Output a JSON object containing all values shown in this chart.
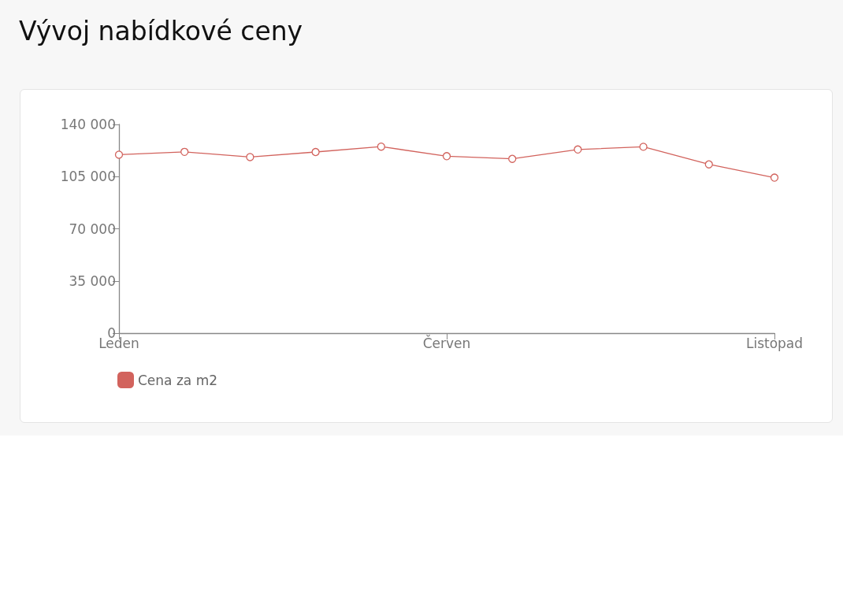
{
  "chart_data": {
    "type": "line",
    "title": "Vývoj nabídkové ceny",
    "categories": [
      "Leden",
      null,
      null,
      null,
      null,
      "Červen",
      null,
      null,
      null,
      null,
      "Listopad"
    ],
    "series": [
      {
        "name": "Cena za m2",
        "color": "#d2635d",
        "values": [
          119700,
          121600,
          118100,
          121500,
          125100,
          118700,
          116900,
          123200,
          125000,
          113200,
          104300
        ]
      }
    ],
    "ylim": [
      0,
      140000
    ],
    "yticks": [
      {
        "value": 0,
        "label": "0"
      },
      {
        "value": 35000,
        "label": "35 000"
      },
      {
        "value": 70000,
        "label": "70 000"
      },
      {
        "value": 105000,
        "label": "105 000"
      },
      {
        "value": 140000,
        "label": "140 000"
      }
    ],
    "grid": false,
    "legend": "bottom left",
    "marker": "circle",
    "line_style": "solid"
  }
}
